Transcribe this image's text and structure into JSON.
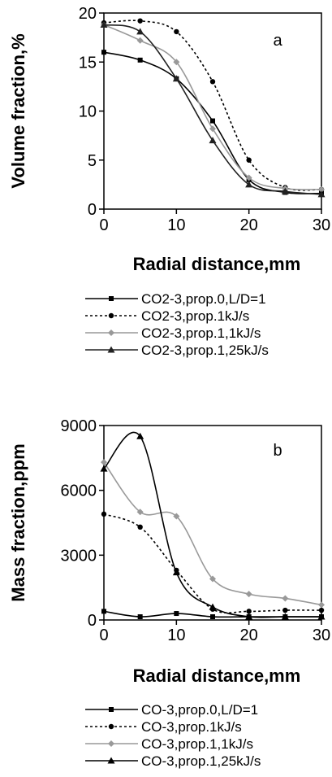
{
  "chart_data": [
    {
      "type": "line",
      "panel_label": "a",
      "xlabel": "Radial distance,mm",
      "ylabel": "Volume fraction,%",
      "xlim": [
        0,
        30
      ],
      "ylim": [
        0,
        20
      ],
      "x_ticks": [
        0,
        10,
        20,
        30
      ],
      "y_ticks": [
        0,
        5,
        10,
        15,
        20
      ],
      "grid": false,
      "legend_position": "below",
      "series": [
        {
          "name": "CO2-3,prop.0,L/D=1",
          "color": "#000000",
          "dash": "solid",
          "marker": "square",
          "x": [
            0,
            5,
            10,
            15,
            20,
            25,
            30
          ],
          "y": [
            16.0,
            15.2,
            13.3,
            9.0,
            3.0,
            1.7,
            1.6
          ]
        },
        {
          "name": "CO2-3,prop.1kJ/s",
          "color": "#000000",
          "dash": "dotted",
          "marker": "circle",
          "x": [
            0,
            5,
            10,
            15,
            20,
            25,
            30
          ],
          "y": [
            19.0,
            19.2,
            18.1,
            13.0,
            5.0,
            2.2,
            2.0
          ]
        },
        {
          "name": "CO2-3,prop.1,1kJ/s",
          "color": "#999999",
          "dash": "solid",
          "marker": "diamond",
          "x": [
            0,
            5,
            10,
            15,
            20,
            25,
            30
          ],
          "y": [
            18.8,
            17.2,
            15.0,
            8.2,
            3.2,
            2.1,
            2.0
          ]
        },
        {
          "name": "CO2-3,prop.1,25kJ/s",
          "color": "#222222",
          "dash": "solid",
          "marker": "triangle",
          "x": [
            0,
            5,
            10,
            15,
            20,
            25,
            30
          ],
          "y": [
            18.8,
            18.1,
            13.3,
            7.0,
            2.5,
            1.8,
            1.5
          ]
        }
      ]
    },
    {
      "type": "line",
      "panel_label": "b",
      "xlabel": "Radial distance,mm",
      "ylabel": "Mass fraction,ppm",
      "xlim": [
        0,
        30
      ],
      "ylim": [
        0,
        9000
      ],
      "x_ticks": [
        0,
        10,
        20,
        30
      ],
      "y_ticks": [
        0,
        3000,
        6000,
        9000
      ],
      "grid": false,
      "legend_position": "below",
      "series": [
        {
          "name": "CO-3,prop.0,L/D=1",
          "color": "#000000",
          "dash": "solid",
          "marker": "square",
          "x": [
            0,
            5,
            10,
            15,
            20,
            25,
            30
          ],
          "y": [
            400,
            150,
            300,
            150,
            150,
            150,
            150
          ]
        },
        {
          "name": "CO-3,prop.1kJ/s",
          "color": "#000000",
          "dash": "dotted",
          "marker": "circle",
          "x": [
            0,
            5,
            10,
            15,
            20,
            25,
            30
          ],
          "y": [
            4900,
            4300,
            2300,
            500,
            400,
            450,
            450
          ]
        },
        {
          "name": "CO-3,prop.1,1kJ/s",
          "color": "#999999",
          "dash": "solid",
          "marker": "diamond",
          "x": [
            0,
            5,
            10,
            15,
            20,
            25,
            30
          ],
          "y": [
            7300,
            5000,
            4800,
            1900,
            1200,
            1000,
            700
          ]
        },
        {
          "name": "CO-3,prop.1,25kJ/s",
          "color": "#000000",
          "dash": "solid",
          "marker": "triangle",
          "x": [
            0,
            5,
            10,
            15,
            20,
            25,
            30
          ],
          "y": [
            7000,
            8500,
            2200,
            600,
            150,
            150,
            150
          ]
        }
      ]
    }
  ]
}
